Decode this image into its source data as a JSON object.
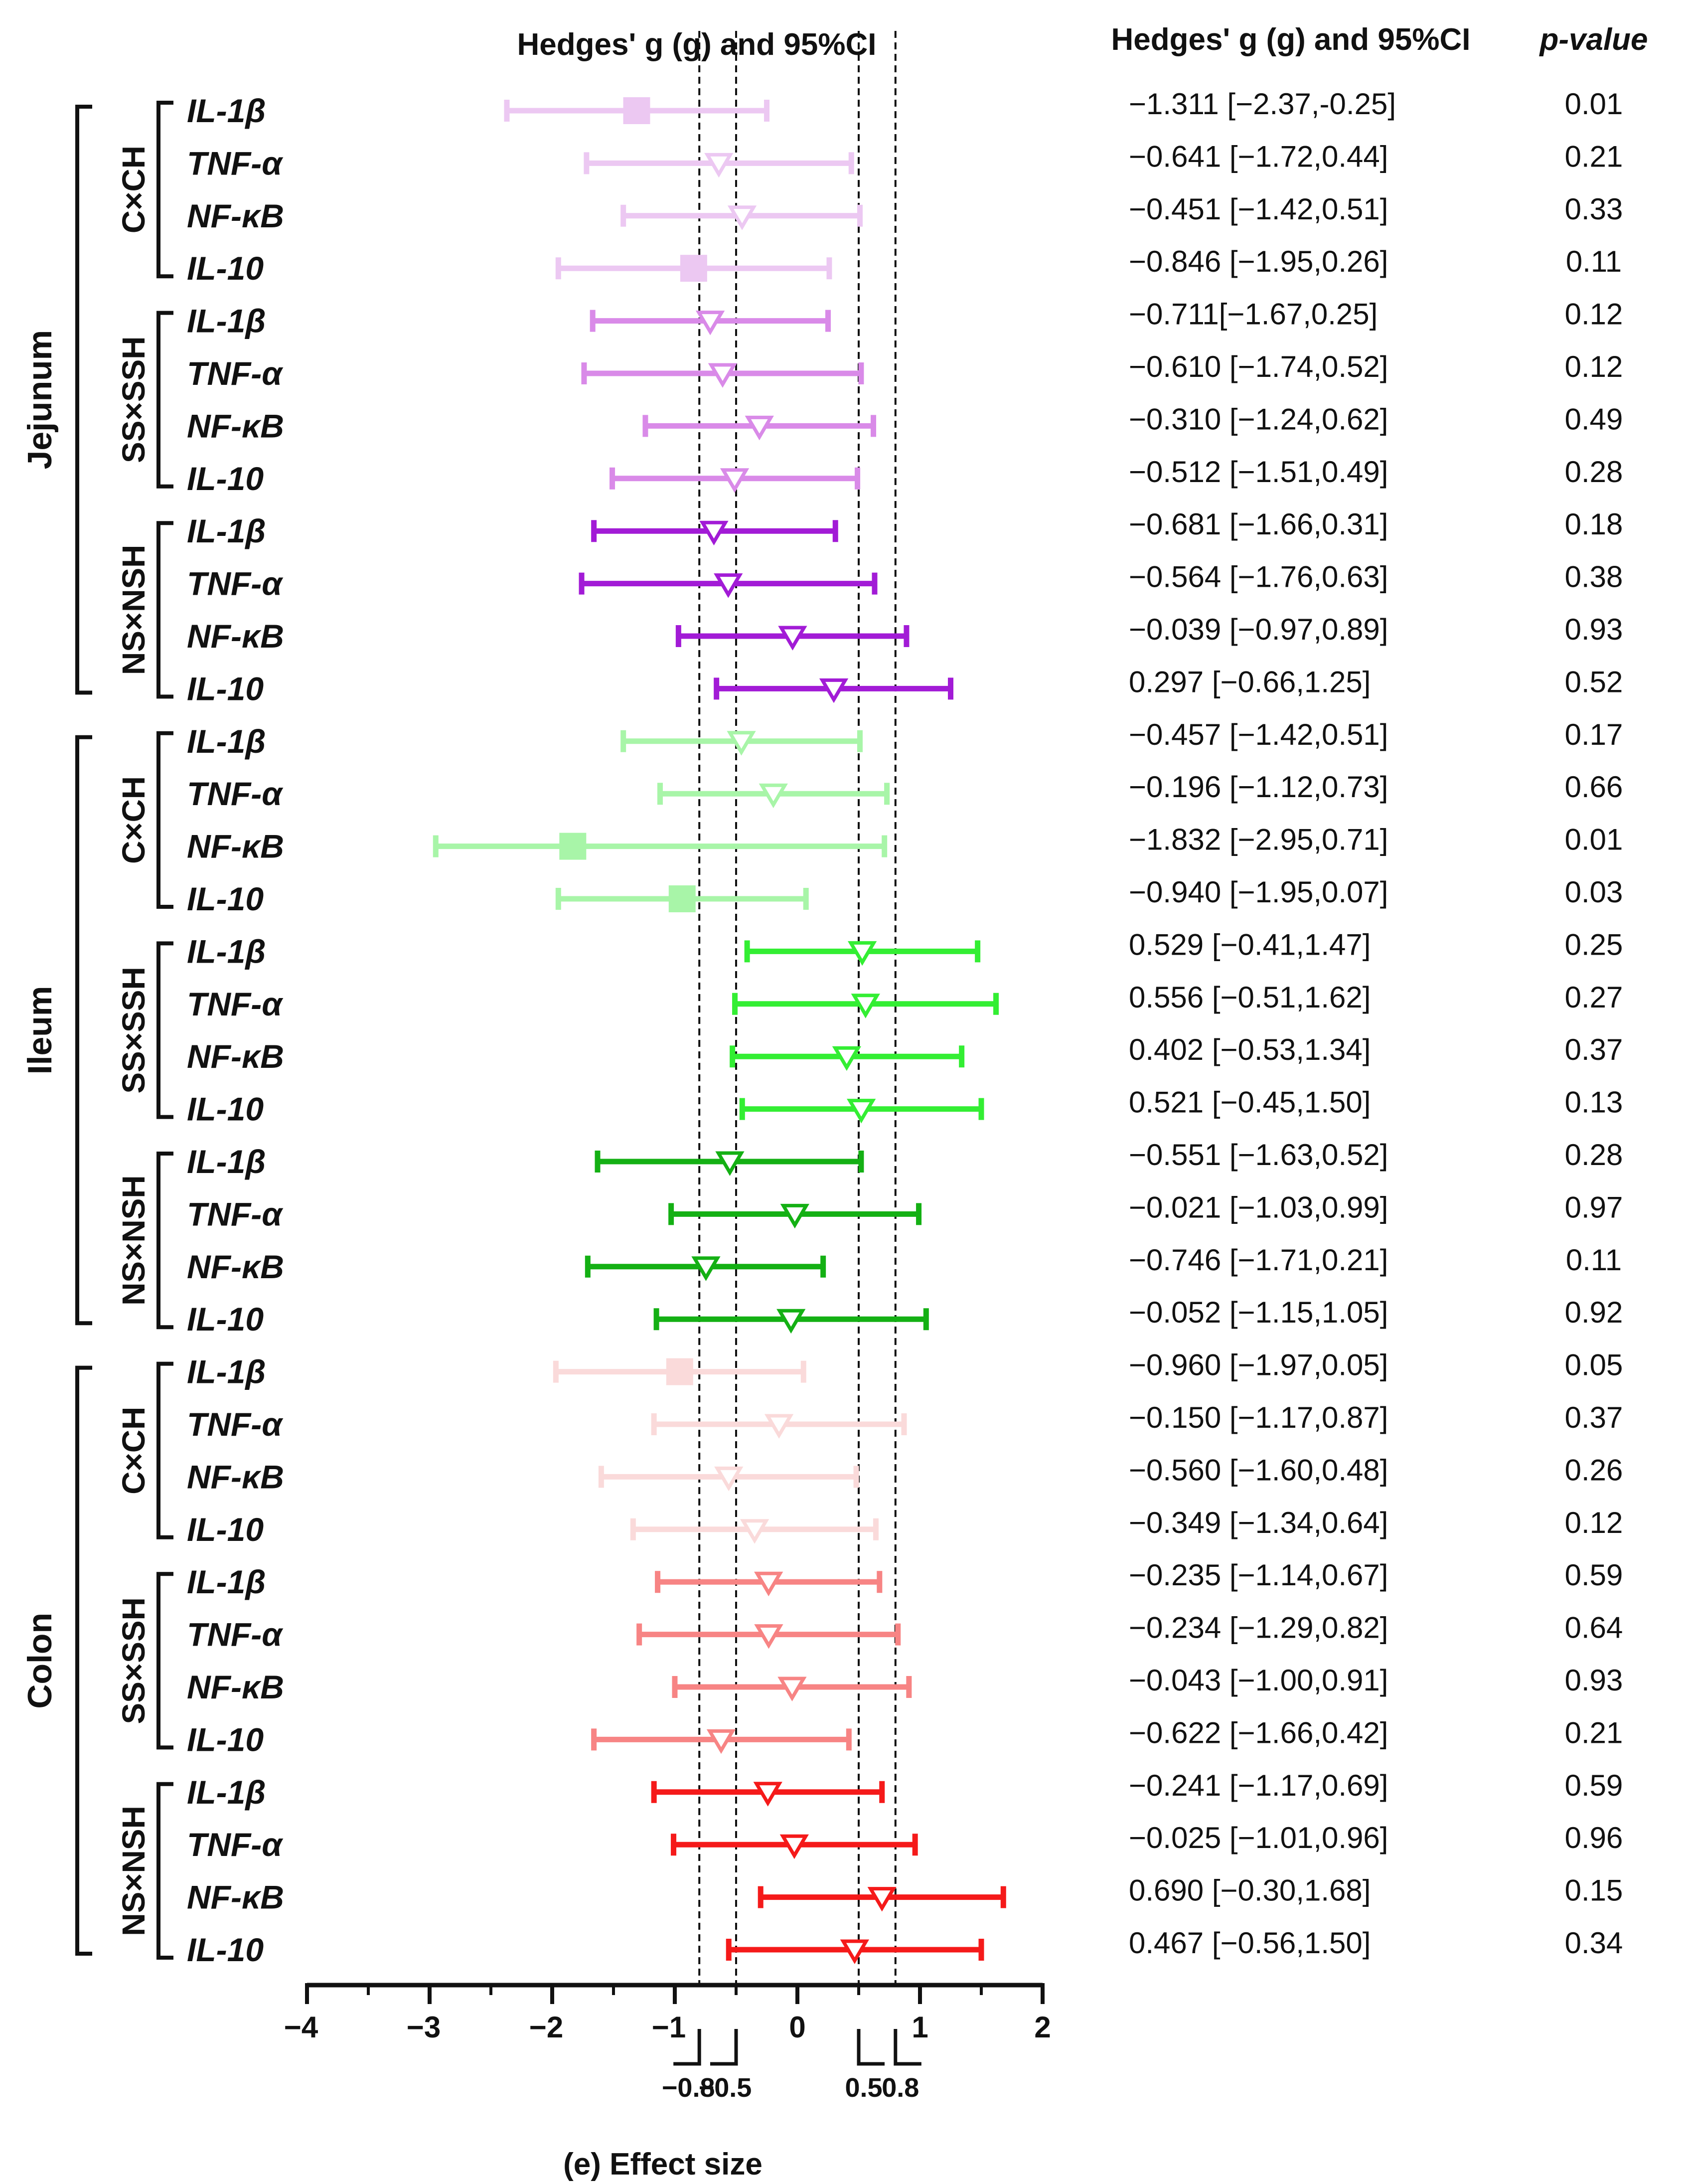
{
  "chart_data": {
    "type": "forest",
    "plot_title": "Hedges' g (g) and 95%CI",
    "table_header": "Hedges' g (g) and 95%CI",
    "pvalue_header": "p-value",
    "xlabel": "(e) Effect size",
    "xlim": [
      -4,
      2
    ],
    "x_ticks": [
      -4,
      -3,
      -2,
      -1,
      0,
      1,
      2
    ],
    "threshold_lines": [
      -0.8,
      -0.5,
      0.5,
      0.8
    ],
    "threshold_labels": [
      "−0.8",
      "−0.5",
      "0.5",
      "0.8"
    ],
    "tissues": [
      {
        "name": "Jejunum",
        "groups": [
          {
            "name": "C×CH",
            "color": "#ecc8f2",
            "rows": [
              {
                "gene": "IL-1β",
                "g": -1.311,
                "lo": -2.37,
                "hi": -0.25,
                "text": "−1.311 [−2.37,-0.25]",
                "p": "0.01",
                "marker": "square"
              },
              {
                "gene": "TNF-α",
                "g": -0.641,
                "lo": -1.72,
                "hi": 0.44,
                "text": "−0.641 [−1.72,0.44]",
                "p": "0.21",
                "marker": "triangle"
              },
              {
                "gene": "NF-κB",
                "g": -0.451,
                "lo": -1.42,
                "hi": 0.51,
                "text": "−0.451 [−1.42,0.51]",
                "p": "0.33",
                "marker": "triangle"
              },
              {
                "gene": "IL-10",
                "g": -0.846,
                "lo": -1.95,
                "hi": 0.26,
                "text": "−0.846 [−1.95,0.26]",
                "p": "0.11",
                "marker": "square"
              }
            ]
          },
          {
            "name": "SS×SSH",
            "color": "#d98ae8",
            "rows": [
              {
                "gene": "IL-1β",
                "g": -0.711,
                "lo": -1.67,
                "hi": 0.25,
                "text": "−0.711[−1.67,0.25]",
                "p": "0.12",
                "marker": "triangle"
              },
              {
                "gene": "TNF-α",
                "g": -0.61,
                "lo": -1.74,
                "hi": 0.52,
                "text": "−0.610 [−1.74,0.52]",
                "p": "0.12",
                "marker": "triangle"
              },
              {
                "gene": "NF-κB",
                "g": -0.31,
                "lo": -1.24,
                "hi": 0.62,
                "text": "−0.310 [−1.24,0.62]",
                "p": "0.49",
                "marker": "triangle"
              },
              {
                "gene": "IL-10",
                "g": -0.512,
                "lo": -1.51,
                "hi": 0.49,
                "text": "−0.512 [−1.51,0.49]",
                "p": "0.28",
                "marker": "triangle"
              }
            ]
          },
          {
            "name": "NS×NSH",
            "color": "#a21bd6",
            "rows": [
              {
                "gene": "IL-1β",
                "g": -0.681,
                "lo": -1.66,
                "hi": 0.31,
                "text": "−0.681 [−1.66,0.31]",
                "p": "0.18",
                "marker": "triangle"
              },
              {
                "gene": "TNF-α",
                "g": -0.564,
                "lo": -1.76,
                "hi": 0.63,
                "text": "−0.564 [−1.76,0.63]",
                "p": "0.38",
                "marker": "triangle"
              },
              {
                "gene": "NF-κB",
                "g": -0.039,
                "lo": -0.97,
                "hi": 0.89,
                "text": "−0.039 [−0.97,0.89]",
                "p": "0.93",
                "marker": "triangle"
              },
              {
                "gene": "IL-10",
                "g": 0.297,
                "lo": -0.66,
                "hi": 1.25,
                "text": "0.297 [−0.66,1.25]",
                "p": "0.52",
                "marker": "triangle"
              }
            ]
          }
        ]
      },
      {
        "name": "Ileum",
        "groups": [
          {
            "name": "C×CH",
            "color": "#a8f5a8",
            "rows": [
              {
                "gene": "IL-1β",
                "g": -0.457,
                "lo": -1.42,
                "hi": 0.51,
                "text": "−0.457 [−1.42,0.51]",
                "p": "0.17",
                "marker": "triangle"
              },
              {
                "gene": "TNF-α",
                "g": -0.196,
                "lo": -1.12,
                "hi": 0.73,
                "text": "−0.196 [−1.12,0.73]",
                "p": "0.66",
                "marker": "triangle"
              },
              {
                "gene": "NF-κB",
                "g": -1.832,
                "lo": -2.95,
                "hi": 0.71,
                "text": "−1.832 [−2.95,0.71]",
                "p": "0.01",
                "marker": "square"
              },
              {
                "gene": "IL-10",
                "g": -0.94,
                "lo": -1.95,
                "hi": 0.07,
                "text": "−0.940 [−1.95,0.07]",
                "p": "0.03",
                "marker": "square"
              }
            ]
          },
          {
            "name": "SS×SSH",
            "color": "#33ee33",
            "rows": [
              {
                "gene": "IL-1β",
                "g": 0.529,
                "lo": -0.41,
                "hi": 1.47,
                "text": "0.529 [−0.41,1.47]",
                "p": "0.25",
                "marker": "triangle"
              },
              {
                "gene": "TNF-α",
                "g": 0.556,
                "lo": -0.51,
                "hi": 1.62,
                "text": "0.556 [−0.51,1.62]",
                "p": "0.27",
                "marker": "triangle"
              },
              {
                "gene": "NF-κB",
                "g": 0.402,
                "lo": -0.53,
                "hi": 1.34,
                "text": "0.402 [−0.53,1.34]",
                "p": "0.37",
                "marker": "triangle"
              },
              {
                "gene": "IL-10",
                "g": 0.521,
                "lo": -0.45,
                "hi": 1.5,
                "text": "0.521 [−0.45,1.50]",
                "p": "0.13",
                "marker": "triangle"
              }
            ]
          },
          {
            "name": "NS×NSH",
            "color": "#14b014",
            "rows": [
              {
                "gene": "IL-1β",
                "g": -0.551,
                "lo": -1.63,
                "hi": 0.52,
                "text": "−0.551 [−1.63,0.52]",
                "p": "0.28",
                "marker": "triangle"
              },
              {
                "gene": "TNF-α",
                "g": -0.021,
                "lo": -1.03,
                "hi": 0.99,
                "text": "−0.021 [−1.03,0.99]",
                "p": "0.97",
                "marker": "triangle"
              },
              {
                "gene": "NF-κB",
                "g": -0.746,
                "lo": -1.71,
                "hi": 0.21,
                "text": "−0.746 [−1.71,0.21]",
                "p": "0.11",
                "marker": "triangle"
              },
              {
                "gene": "IL-10",
                "g": -0.052,
                "lo": -1.15,
                "hi": 1.05,
                "text": "−0.052 [−1.15,1.05]",
                "p": "0.92",
                "marker": "triangle"
              }
            ]
          }
        ]
      },
      {
        "name": "Colon",
        "groups": [
          {
            "name": "C×CH",
            "color": "#fadada",
            "rows": [
              {
                "gene": "IL-1β",
                "g": -0.96,
                "lo": -1.97,
                "hi": 0.05,
                "text": "−0.960 [−1.97,0.05]",
                "p": "0.05",
                "marker": "square"
              },
              {
                "gene": "TNF-α",
                "g": -0.15,
                "lo": -1.17,
                "hi": 0.87,
                "text": "−0.150 [−1.17,0.87]",
                "p": "0.37",
                "marker": "triangle"
              },
              {
                "gene": "NF-κB",
                "g": -0.56,
                "lo": -1.6,
                "hi": 0.48,
                "text": "−0.560 [−1.60,0.48]",
                "p": "0.26",
                "marker": "triangle"
              },
              {
                "gene": "IL-10",
                "g": -0.349,
                "lo": -1.34,
                "hi": 0.64,
                "text": "−0.349 [−1.34,0.64]",
                "p": "0.12",
                "marker": "triangle"
              }
            ]
          },
          {
            "name": "SS×SSH",
            "color": "#f78484",
            "rows": [
              {
                "gene": "IL-1β",
                "g": -0.235,
                "lo": -1.14,
                "hi": 0.67,
                "text": "−0.235 [−1.14,0.67]",
                "p": "0.59",
                "marker": "triangle"
              },
              {
                "gene": "TNF-α",
                "g": -0.234,
                "lo": -1.29,
                "hi": 0.82,
                "text": "−0.234 [−1.29,0.82]",
                "p": "0.64",
                "marker": "triangle"
              },
              {
                "gene": "NF-κB",
                "g": -0.043,
                "lo": -1.0,
                "hi": 0.91,
                "text": "−0.043 [−1.00,0.91]",
                "p": "0.93",
                "marker": "triangle"
              },
              {
                "gene": "IL-10",
                "g": -0.622,
                "lo": -1.66,
                "hi": 0.42,
                "text": "−0.622 [−1.66,0.42]",
                "p": "0.21",
                "marker": "triangle"
              }
            ]
          },
          {
            "name": "NS×NSH",
            "color": "#f51a1a",
            "rows": [
              {
                "gene": "IL-1β",
                "g": -0.241,
                "lo": -1.17,
                "hi": 0.69,
                "text": "−0.241 [−1.17,0.69]",
                "p": "0.59",
                "marker": "triangle"
              },
              {
                "gene": "TNF-α",
                "g": -0.025,
                "lo": -1.01,
                "hi": 0.96,
                "text": "−0.025 [−1.01,0.96]",
                "p": "0.96",
                "marker": "triangle"
              },
              {
                "gene": "NF-κB",
                "g": 0.69,
                "lo": -0.3,
                "hi": 1.68,
                "text": "0.690 [−0.30,1.68]",
                "p": "0.15",
                "marker": "triangle"
              },
              {
                "gene": "IL-10",
                "g": 0.467,
                "lo": -0.56,
                "hi": 1.5,
                "text": "0.467 [−0.56,1.50]",
                "p": "0.34",
                "marker": "triangle"
              }
            ]
          }
        ]
      }
    ]
  }
}
